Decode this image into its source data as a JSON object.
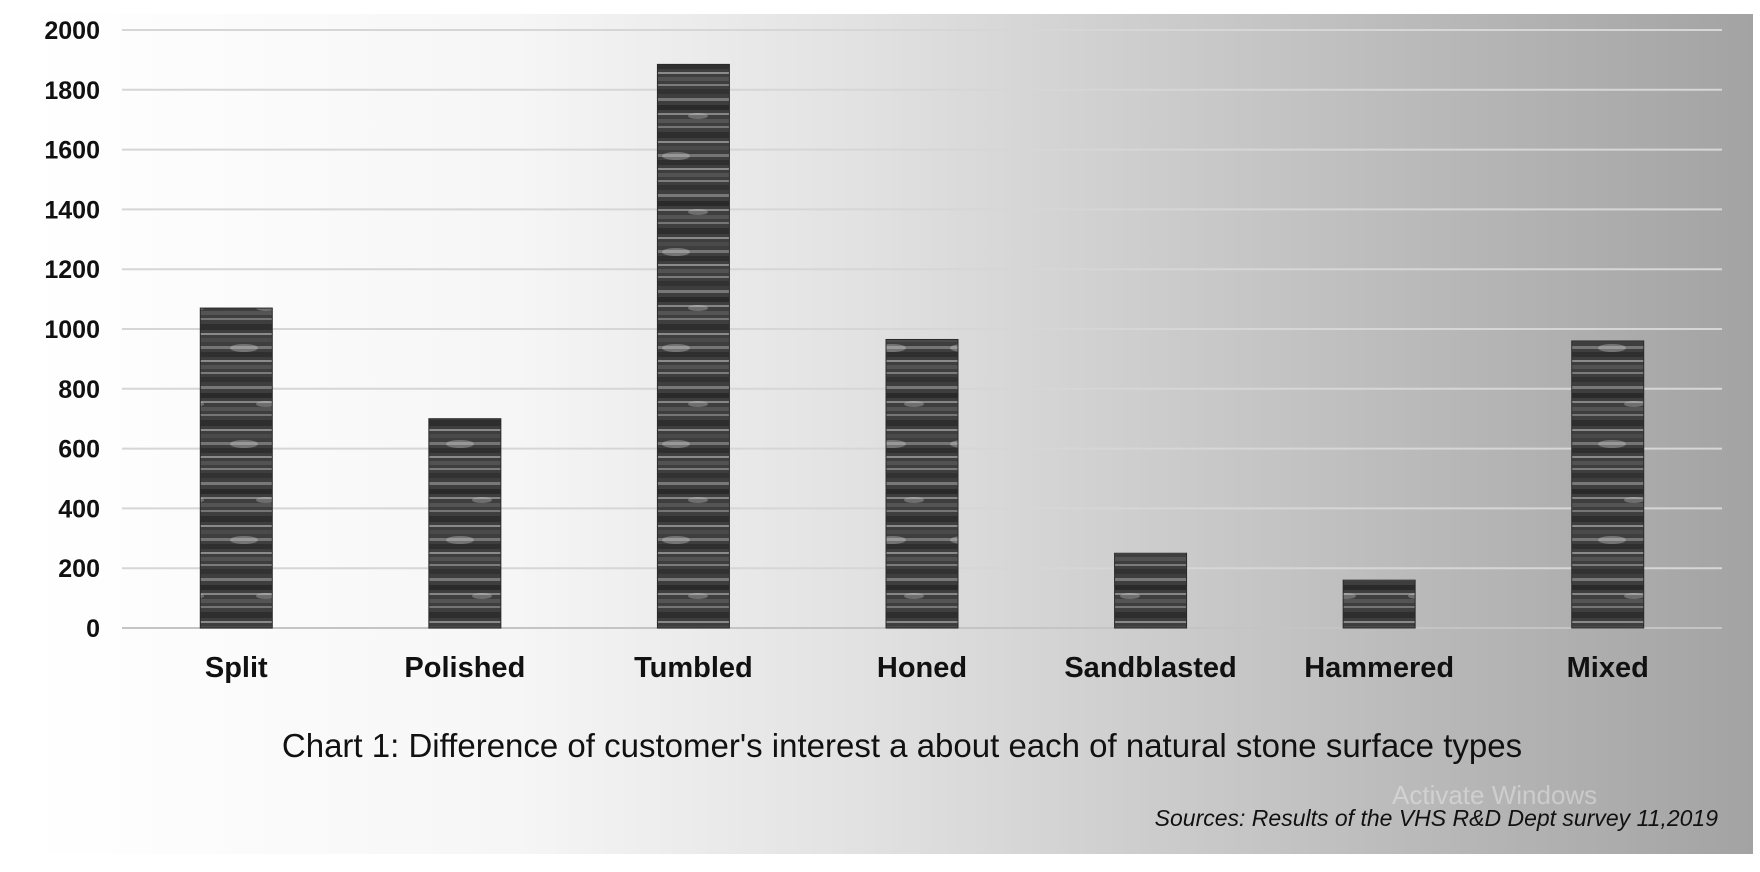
{
  "chart_data": {
    "type": "bar",
    "categories": [
      "Split",
      "Polished",
      "Tumbled",
      "Honed",
      "Sandblasted",
      "Hammered",
      "Mixed"
    ],
    "values": [
      1070,
      700,
      1885,
      965,
      250,
      160,
      960
    ],
    "ylim": [
      0,
      2000
    ],
    "yticks": [
      0,
      200,
      400,
      600,
      800,
      1000,
      1200,
      1400,
      1600,
      1800,
      2000
    ],
    "grid": true,
    "legend": "none",
    "bar_style": "dark grey marble stone texture",
    "caption": "Chart 1: Difference of customer's interest a about each of natural stone surface types",
    "source": "Sources: Results of the VHS R&D  Dept survey 11,2019"
  },
  "overlay": {
    "watermark": "Activate Windows"
  },
  "colors": {
    "bar_base": "#3c3c3c",
    "grid": "#d6d6d6",
    "text": "#111111"
  }
}
